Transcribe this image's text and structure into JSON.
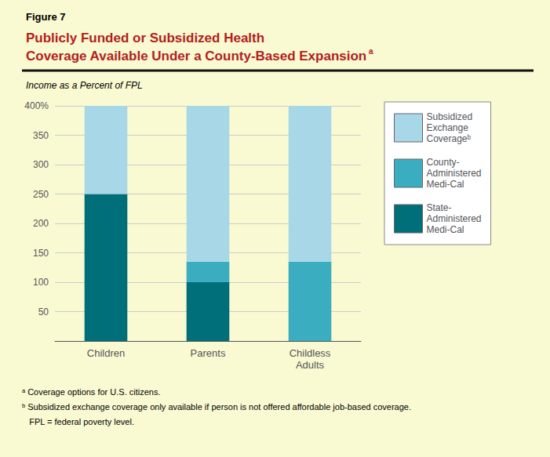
{
  "chart_data": {
    "type": "bar",
    "figure_label": "Figure 7",
    "title": "Publicly Funded or Subsidized Health\nCoverage Available Under a County-Based Expansion",
    "title_superscript": "a",
    "subtitle": "Income as a Percent of FPL",
    "categories": [
      "Children",
      "Parents",
      "Childless\nAdults"
    ],
    "series": [
      {
        "name": "State-\nAdministered\nMedi-Cal",
        "color": "#006F7A",
        "values": [
          250,
          100,
          0
        ]
      },
      {
        "name": "County-\nAdministered\nMedi-Cal",
        "color": "#3AAEC0",
        "values": [
          0,
          35,
          135
        ]
      },
      {
        "name": "Subsidized\nExchange\nCoverageᵇ",
        "color": "#A8D8E8",
        "values": [
          150,
          265,
          265
        ]
      }
    ],
    "stacked": true,
    "ylim": [
      0,
      400
    ],
    "yticks": [
      {
        "value": 0,
        "label": ""
      },
      50,
      100,
      150,
      200,
      250,
      300,
      350,
      {
        "value": 400,
        "label": "400%"
      }
    ],
    "grid": true,
    "legend": "right",
    "footnotes": [
      "ᵃ Coverage options for U.S. citizens.",
      "ᵇ Subsidized exchange coverage only available if person is not offered affordable job-based coverage.",
      "   FPL = federal poverty level."
    ]
  }
}
